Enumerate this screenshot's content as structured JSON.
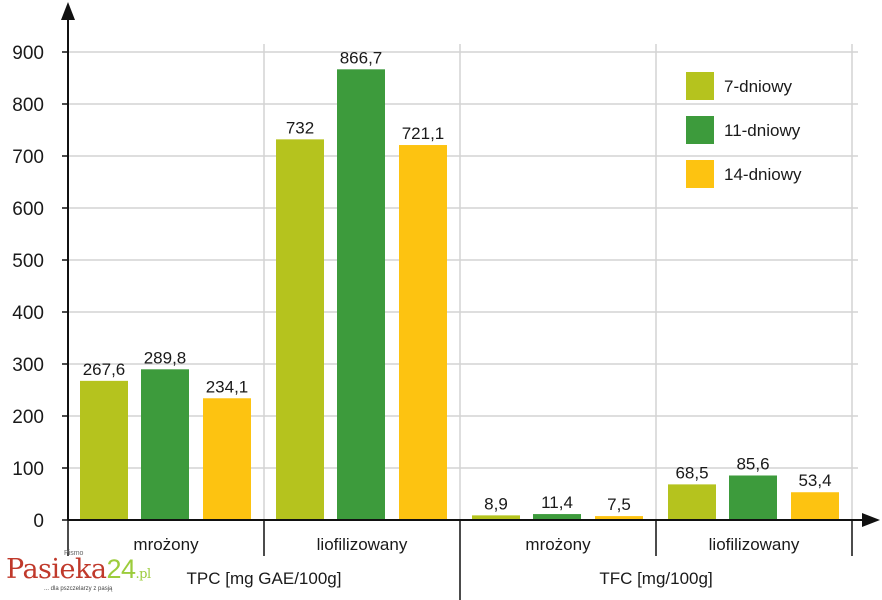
{
  "chart_data": {
    "type": "bar",
    "ylim": [
      0,
      900
    ],
    "yticks": [
      0,
      100,
      200,
      300,
      400,
      500,
      600,
      700,
      800,
      900
    ],
    "groups": [
      {
        "measure": "TPC [mg GAE/100g]",
        "category": "mrożony",
        "values": [
          267.6,
          289.8,
          234.1
        ],
        "labels": [
          "267,6",
          "289,8",
          "234,1"
        ]
      },
      {
        "measure": "TPC [mg GAE/100g]",
        "category": "liofilizowany",
        "values": [
          732,
          866.7,
          721.1
        ],
        "labels": [
          "732",
          "866,7",
          "721,1"
        ]
      },
      {
        "measure": "TFC [mg/100g]",
        "category": "mrożony",
        "values": [
          8.9,
          11.4,
          7.5
        ],
        "labels": [
          "8,9",
          "11,4",
          "7,5"
        ]
      },
      {
        "measure": "TFC [mg/100g]",
        "category": "liofilizowany",
        "values": [
          68.5,
          85.6,
          53.4
        ],
        "labels": [
          "68,5",
          "85,6",
          "53,4"
        ]
      }
    ],
    "measures": [
      "TPC [mg GAE/100g]",
      "TFC [mg/100g]"
    ],
    "series": [
      {
        "name": "7-dniowy",
        "color": "#b5c31e"
      },
      {
        "name": "11-dniowy",
        "color": "#3d9b3c"
      },
      {
        "name": "14-dniowy",
        "color": "#fdc311"
      }
    ],
    "legend_position": "top-right",
    "grid": true
  },
  "watermark": {
    "small": "Pismo",
    "brand": "Pasieka",
    "number": "24",
    "suffix": ".pl",
    "tagline": "... dla pszczelarzy z pasją"
  }
}
